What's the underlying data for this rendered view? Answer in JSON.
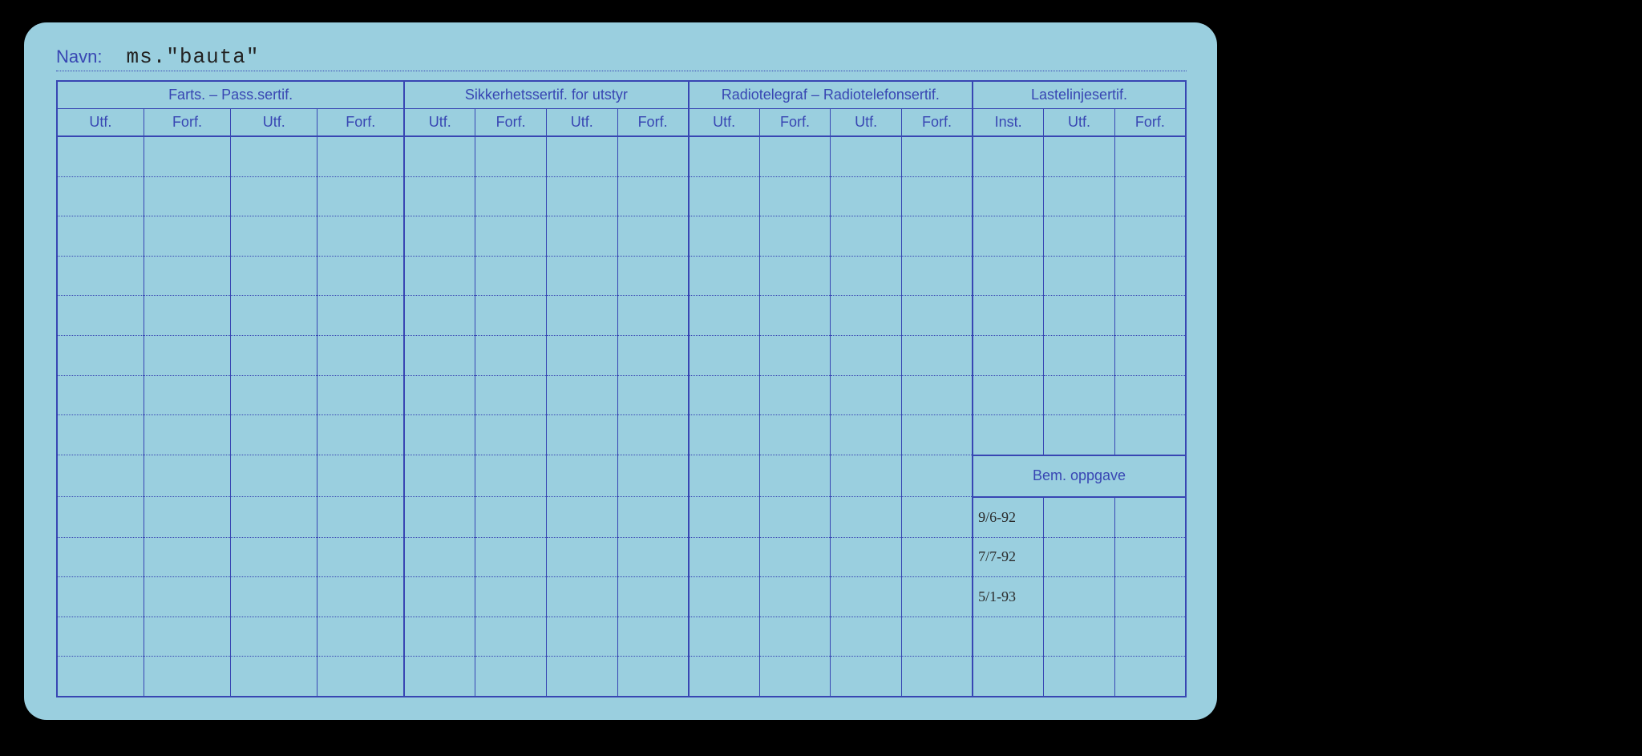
{
  "colors": {
    "page_bg": "#000000",
    "card_bg": "#9acfdf",
    "ink": "#3846b3",
    "text": "#222222"
  },
  "navn": {
    "label": "Navn:",
    "value": "ms.\"bauta\""
  },
  "groups": [
    {
      "title": "Farts. – Pass.sertif.",
      "cols": [
        "Utf.",
        "Forf.",
        "Utf.",
        "Forf."
      ]
    },
    {
      "title": "Sikkerhetssertif. for utstyr",
      "cols": [
        "Utf.",
        "Forf.",
        "Utf.",
        "Forf."
      ]
    },
    {
      "title": "Radiotelegraf – Radiotelefonsertif.",
      "cols": [
        "Utf.",
        "Forf.",
        "Utf.",
        "Forf."
      ]
    },
    {
      "title": "Lastelinjesertif.",
      "cols": [
        "Inst.",
        "Utf.",
        "Forf."
      ]
    }
  ],
  "bem_label": "Bem. oppgave",
  "body_rows_above": 8,
  "notes_rows": 5,
  "handwritten": {
    "col_index": 12,
    "entries": [
      "9/6-92",
      "7/7-92",
      "5/1-93"
    ]
  }
}
